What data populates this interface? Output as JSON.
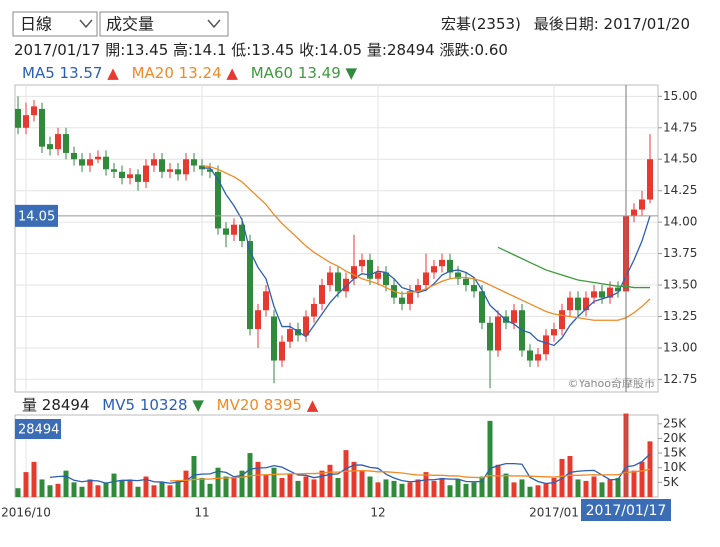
{
  "controls": {
    "period": "日線",
    "indicator": "成交量"
  },
  "stock": {
    "name": "宏碁(2353)",
    "last_date_label": "最後日期:",
    "last_date": "2017/01/20"
  },
  "info": {
    "date": "2017/01/17",
    "open_label": "開:",
    "high_label": "高:",
    "low_label": "低:",
    "close_label": "收:",
    "volume_label": "量:",
    "change_label": "漲跌:",
    "change": "0.60"
  },
  "watermark": "©Yahoo奇摩股市",
  "chart_data": [
    {
      "type": "candlestick",
      "categories": [
        null,
        "2016/10",
        null,
        null,
        null,
        null,
        null,
        null,
        null,
        null,
        null,
        null,
        null,
        null,
        null,
        null,
        null,
        null,
        null,
        null,
        null,
        null,
        null,
        "11",
        null,
        null,
        null,
        null,
        null,
        null,
        null,
        null,
        null,
        null,
        null,
        null,
        null,
        null,
        null,
        null,
        null,
        null,
        null,
        null,
        null,
        "12",
        null,
        null,
        null,
        null,
        null,
        null,
        null,
        null,
        null,
        null,
        null,
        null,
        null,
        null,
        null,
        null,
        null,
        null,
        null,
        null,
        null,
        "2017/01",
        null,
        null,
        null,
        null,
        null,
        null,
        null,
        null,
        null,
        null,
        null,
        null
      ],
      "open": [
        14.9,
        14.75,
        14.85,
        14.9,
        14.62,
        14.58,
        14.7,
        14.55,
        14.5,
        14.45,
        14.5,
        14.52,
        14.42,
        14.4,
        14.35,
        14.38,
        14.32,
        14.45,
        14.5,
        14.4,
        14.42,
        14.38,
        14.5,
        14.45,
        14.42,
        14.4,
        13.95,
        13.9,
        13.98,
        13.85,
        13.15,
        13.3,
        13.25,
        12.9,
        13.05,
        13.15,
        13.1,
        13.25,
        13.35,
        13.5,
        13.6,
        13.45,
        13.55,
        13.65,
        13.7,
        13.55,
        13.6,
        13.5,
        13.4,
        13.35,
        13.45,
        13.5,
        13.6,
        13.65,
        13.7,
        13.6,
        13.55,
        13.5,
        13.45,
        13.2,
        12.98,
        13.25,
        13.2,
        13.3,
        12.98,
        12.9,
        12.95,
        13.1,
        13.15,
        13.3,
        13.4,
        13.3,
        13.4,
        13.45,
        13.4,
        13.48,
        13.45,
        14.05,
        14.1,
        14.18
      ],
      "high": [
        15.0,
        14.95,
        14.97,
        14.95,
        14.68,
        14.75,
        14.75,
        14.6,
        14.55,
        14.55,
        14.57,
        14.57,
        14.47,
        14.45,
        14.43,
        14.42,
        14.5,
        14.55,
        14.55,
        14.47,
        14.47,
        14.55,
        14.55,
        14.5,
        14.47,
        14.45,
        14.0,
        14.03,
        14.03,
        13.9,
        13.35,
        13.5,
        13.3,
        13.1,
        13.2,
        13.2,
        13.3,
        13.4,
        13.55,
        13.65,
        13.65,
        13.6,
        13.9,
        13.75,
        13.75,
        13.65,
        13.65,
        13.55,
        13.45,
        13.5,
        13.55,
        13.75,
        13.7,
        13.75,
        13.75,
        13.65,
        13.6,
        13.55,
        13.5,
        13.25,
        13.3,
        13.3,
        13.35,
        13.35,
        13.03,
        13.0,
        13.15,
        13.2,
        13.35,
        13.45,
        13.45,
        13.45,
        13.5,
        13.5,
        13.53,
        13.53,
        14.1,
        14.15,
        14.25,
        14.7
      ],
      "low": [
        14.7,
        14.7,
        14.8,
        14.55,
        14.53,
        14.53,
        14.5,
        14.45,
        14.4,
        14.4,
        14.47,
        14.37,
        14.35,
        14.3,
        14.3,
        14.25,
        14.27,
        14.4,
        14.35,
        14.35,
        14.33,
        14.33,
        14.4,
        14.37,
        14.35,
        13.9,
        13.8,
        13.85,
        13.8,
        13.1,
        13.0,
        13.25,
        12.72,
        12.85,
        13.0,
        13.05,
        13.05,
        13.2,
        13.3,
        13.45,
        13.4,
        13.4,
        13.5,
        13.6,
        13.5,
        13.5,
        13.45,
        13.35,
        13.3,
        13.3,
        13.4,
        13.45,
        13.55,
        13.6,
        13.55,
        13.5,
        13.45,
        13.4,
        13.15,
        12.68,
        12.93,
        13.15,
        13.15,
        12.93,
        12.85,
        12.85,
        12.9,
        13.05,
        13.1,
        13.25,
        13.25,
        13.25,
        13.35,
        13.35,
        13.35,
        13.4,
        13.45,
        14.0,
        14.05,
        14.15
      ],
      "close": [
        14.75,
        14.85,
        14.92,
        14.6,
        14.58,
        14.7,
        14.55,
        14.5,
        14.45,
        14.5,
        14.52,
        14.42,
        14.4,
        14.35,
        14.38,
        14.32,
        14.45,
        14.5,
        14.4,
        14.42,
        14.38,
        14.5,
        14.45,
        14.42,
        14.4,
        13.95,
        13.9,
        13.98,
        13.85,
        13.15,
        13.3,
        13.45,
        12.9,
        13.05,
        13.15,
        13.1,
        13.25,
        13.35,
        13.5,
        13.6,
        13.45,
        13.55,
        13.65,
        13.7,
        13.55,
        13.6,
        13.5,
        13.4,
        13.35,
        13.45,
        13.5,
        13.6,
        13.65,
        13.7,
        13.6,
        13.55,
        13.5,
        13.45,
        13.2,
        12.98,
        13.25,
        13.2,
        13.3,
        12.98,
        12.9,
        12.95,
        13.1,
        13.15,
        13.3,
        13.4,
        13.3,
        13.4,
        13.45,
        13.4,
        13.48,
        13.45,
        14.05,
        14.1,
        14.18,
        14.5
      ],
      "up_color": "#e8392f",
      "down_color": "#2f8a3c",
      "series": [
        {
          "name": "MA5",
          "color": "#2b5fb4",
          "values": [
            null,
            null,
            null,
            null,
            null,
            null,
            null,
            null,
            null,
            null,
            null,
            null,
            null,
            null,
            null,
            null,
            null,
            null,
            null,
            null,
            null,
            null,
            null,
            14.43,
            14.43,
            14.34,
            14.22,
            14.13,
            14.02,
            13.77,
            13.64,
            13.55,
            13.33,
            13.17,
            13.17,
            13.13,
            13.09,
            13.18,
            13.27,
            13.36,
            13.43,
            13.49,
            13.55,
            13.59,
            13.58,
            13.61,
            13.6,
            13.55,
            13.48,
            13.46,
            13.44,
            13.46,
            13.51,
            13.58,
            13.61,
            13.62,
            13.6,
            13.56,
            13.46,
            13.34,
            13.28,
            13.22,
            13.19,
            13.14,
            13.12,
            13.06,
            13.04,
            13.02,
            13.08,
            13.18,
            13.25,
            13.31,
            13.37,
            13.39,
            13.41,
            13.44,
            13.57,
            13.7,
            13.85,
            14.05
          ]
        },
        {
          "name": "MA20",
          "color": "#f08a24",
          "values": [
            null,
            null,
            null,
            null,
            null,
            null,
            null,
            null,
            null,
            null,
            null,
            null,
            null,
            null,
            null,
            null,
            null,
            null,
            null,
            null,
            null,
            null,
            null,
            14.45,
            14.44,
            14.42,
            14.39,
            14.36,
            14.32,
            14.26,
            14.2,
            14.14,
            14.06,
            13.99,
            13.93,
            13.87,
            13.81,
            13.76,
            13.72,
            13.68,
            13.65,
            13.61,
            13.58,
            13.55,
            13.53,
            13.51,
            13.48,
            13.45,
            13.43,
            13.44,
            13.45,
            13.47,
            13.5,
            13.53,
            13.55,
            13.56,
            13.56,
            13.55,
            13.53,
            13.5,
            13.47,
            13.44,
            13.41,
            13.38,
            13.35,
            13.32,
            13.29,
            13.27,
            13.26,
            13.25,
            13.24,
            13.23,
            13.22,
            13.22,
            13.22,
            13.22,
            13.24,
            13.28,
            13.33,
            13.39
          ]
        },
        {
          "name": "MA60",
          "color": "#3d9b3d",
          "values": [
            null,
            null,
            null,
            null,
            null,
            null,
            null,
            null,
            null,
            null,
            null,
            null,
            null,
            null,
            null,
            null,
            null,
            null,
            null,
            null,
            null,
            null,
            null,
            null,
            null,
            null,
            null,
            null,
            null,
            null,
            null,
            null,
            null,
            null,
            null,
            null,
            null,
            null,
            null,
            null,
            null,
            null,
            null,
            null,
            null,
            null,
            null,
            null,
            null,
            null,
            null,
            null,
            null,
            null,
            null,
            null,
            null,
            null,
            null,
            null,
            13.8,
            13.77,
            13.74,
            13.71,
            13.68,
            13.65,
            13.62,
            13.6,
            13.58,
            13.56,
            13.54,
            13.53,
            13.52,
            13.51,
            13.5,
            13.49,
            13.49,
            13.48,
            13.48,
            13.48
          ]
        }
      ],
      "ylim": [
        12.65,
        15.09
      ],
      "yticks": [
        {
          "value": 12.75,
          "label": "12.75"
        },
        {
          "value": 13,
          "label": "13.00"
        },
        13.25,
        {
          "value": 13.5,
          "label": "13.50"
        },
        13.75,
        {
          "value": 14,
          "label": "14.00"
        },
        14.25,
        {
          "value": 14.5,
          "label": "14.50"
        },
        14.75,
        {
          "value": 15,
          "label": "15.00"
        }
      ],
      "grid": true
    },
    {
      "type": "bar",
      "label": "量",
      "values": [
        3000,
        8500,
        12000,
        6000,
        4000,
        4500,
        9000,
        5000,
        3500,
        6000,
        4000,
        5000,
        8000,
        5500,
        6000,
        3500,
        7000,
        4000,
        5000,
        4000,
        5500,
        9000,
        14000,
        6500,
        4500,
        10000,
        7000,
        6500,
        9000,
        15000,
        12000,
        7500,
        10000,
        6500,
        8000,
        5500,
        7000,
        6000,
        9000,
        11000,
        6500,
        16000,
        12000,
        9000,
        7000,
        5000,
        6000,
        5500,
        4500,
        5000,
        6000,
        8500,
        5500,
        6500,
        4000,
        6000,
        4500,
        5000,
        7000,
        26000,
        11000,
        8000,
        5000,
        6000,
        3500,
        4000,
        4500,
        6500,
        13000,
        14000,
        6000,
        5500,
        7000,
        5000,
        6000,
        6500,
        28494,
        9000,
        12000,
        19000
      ],
      "series": [
        {
          "name": "MV5",
          "color": "#2b5fb4",
          "values": [
            null,
            null,
            null,
            null,
            6700,
            7000,
            7100,
            5700,
            5200,
            5600,
            5500,
            4700,
            5300,
            5700,
            5700,
            5600,
            6000,
            5200,
            5100,
            4700,
            5100,
            5500,
            7500,
            7800,
            7900,
            8800,
            8400,
            6900,
            7400,
            9500,
            9900,
            10000,
            10700,
            10200,
            8800,
            7500,
            7400,
            6600,
            7100,
            7700,
            7900,
            9700,
            10900,
            10900,
            10100,
            9800,
            7800,
            6500,
            5600,
            5200,
            5400,
            5900,
            5900,
            6300,
            6100,
            6100,
            5300,
            5200,
            5300,
            9700,
            10700,
            11400,
            11400,
            11200,
            6700,
            5300,
            4600,
            4900,
            6300,
            8400,
            8800,
            9000,
            9100,
            7500,
            5900,
            6000,
            10328,
            10700,
            12100,
            14700
          ]
        },
        {
          "name": "MV20",
          "color": "#f08a24",
          "values": [
            null,
            null,
            null,
            null,
            null,
            null,
            null,
            null,
            null,
            null,
            null,
            null,
            null,
            null,
            null,
            null,
            null,
            null,
            null,
            5500,
            5600,
            5700,
            6000,
            6100,
            6100,
            6400,
            6500,
            6600,
            6800,
            7200,
            7500,
            7600,
            7700,
            7800,
            7900,
            7900,
            8000,
            8000,
            8200,
            8500,
            8500,
            8800,
            8900,
            9000,
            8900,
            8600,
            8600,
            8400,
            8200,
            7800,
            7500,
            7500,
            7400,
            7400,
            7200,
            7200,
            6800,
            6700,
            6600,
            7300,
            7200,
            7300,
            7200,
            7200,
            7100,
            7000,
            6900,
            6800,
            7100,
            7400,
            7400,
            7500,
            7600,
            7500,
            7600,
            7600,
            8395,
            8600,
            8900,
            9500
          ]
        }
      ],
      "ylim": [
        0,
        28000
      ],
      "yticks": [
        {
          "value": 5000,
          "label": "5K"
        },
        {
          "value": 10000,
          "label": "10K"
        },
        {
          "value": 15000,
          "label": "15K"
        },
        {
          "value": 20000,
          "label": "20K"
        },
        {
          "value": 25000,
          "label": "25K"
        }
      ],
      "grid": false
    }
  ]
}
